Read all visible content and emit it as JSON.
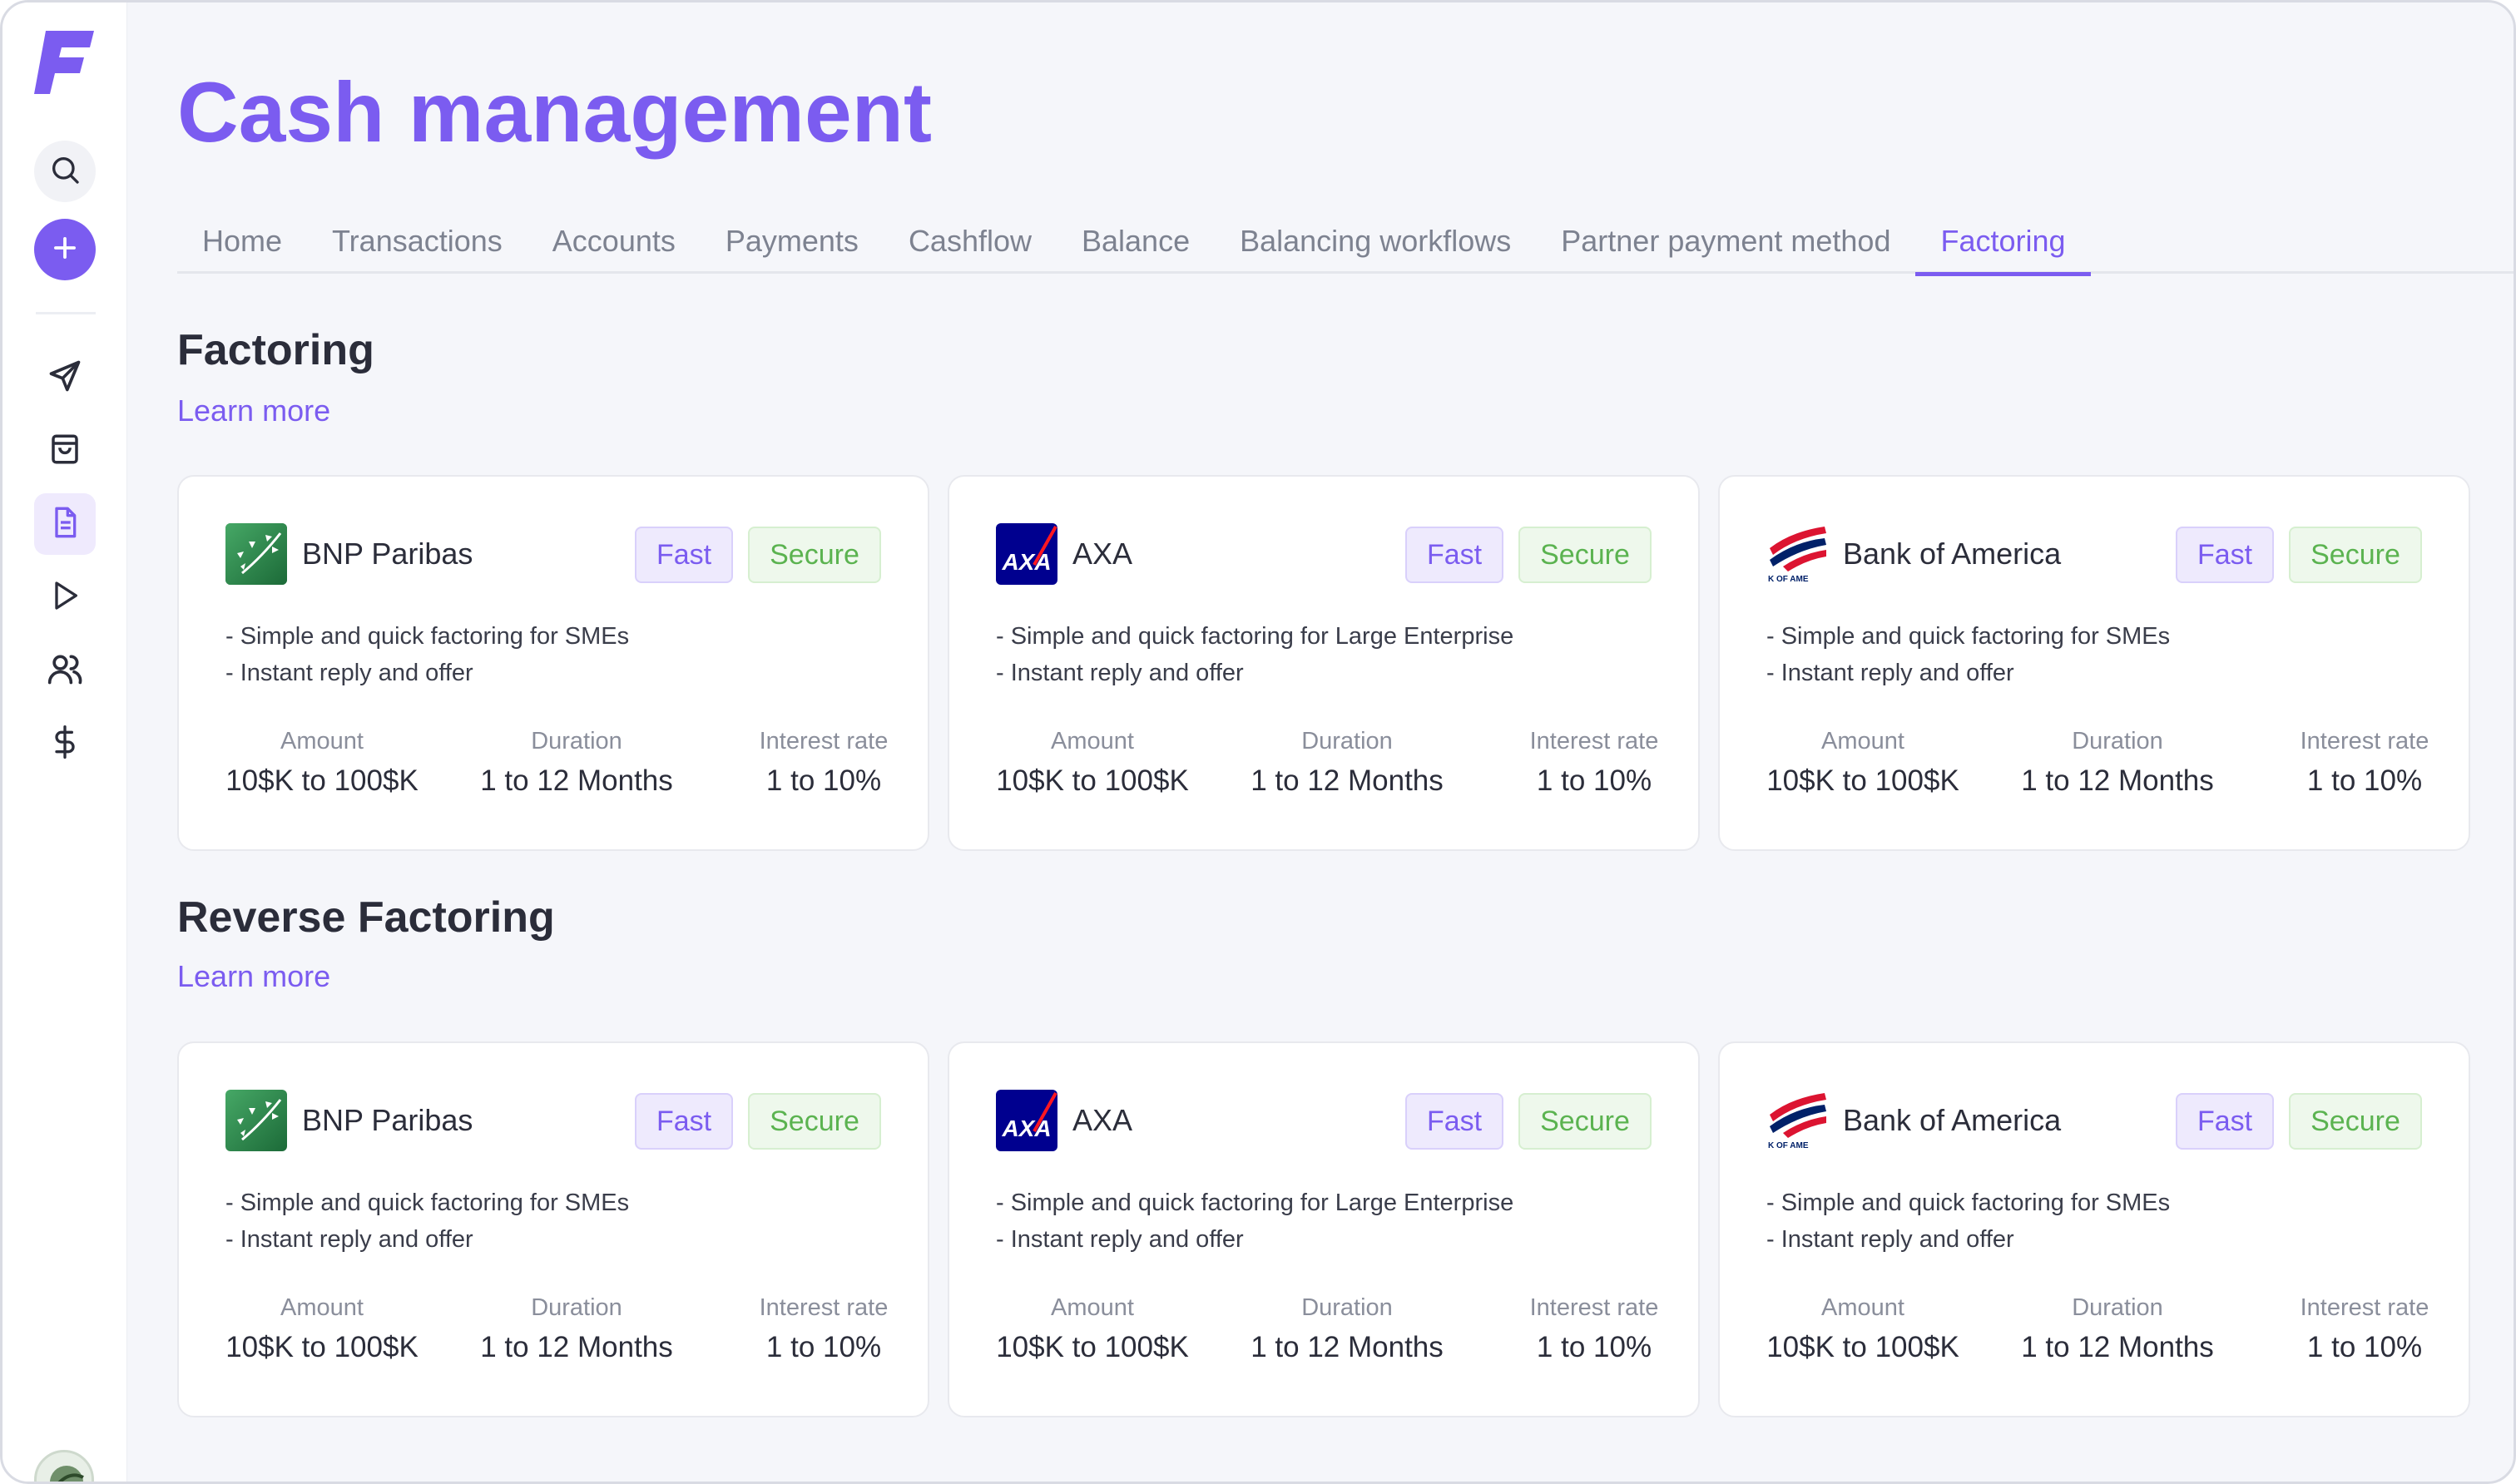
{
  "app": {
    "logo_letter": "F",
    "title": "Cash management"
  },
  "sidebar": {
    "icons": [
      "search-icon",
      "plus-icon",
      "send-icon",
      "bag-icon",
      "document-icon",
      "play-icon",
      "users-icon",
      "dollar-icon"
    ],
    "active": "document-icon"
  },
  "tabs": [
    {
      "label": "Home",
      "active": false
    },
    {
      "label": "Transactions",
      "active": false
    },
    {
      "label": "Accounts",
      "active": false
    },
    {
      "label": "Payments",
      "active": false
    },
    {
      "label": "Cashflow",
      "active": false
    },
    {
      "label": "Balance",
      "active": false
    },
    {
      "label": "Balancing workflows",
      "active": false
    },
    {
      "label": "Partner payment method",
      "active": false
    },
    {
      "label": "Factoring",
      "active": true
    }
  ],
  "sections": [
    {
      "title": "Factoring",
      "learn_more": "Learn more",
      "cards": [
        {
          "bank": "BNP Paribas",
          "logo": "bnp-logo",
          "badges": {
            "fast": "Fast",
            "secure": "Secure"
          },
          "lines": [
            "- Simple and quick factoring for SMEs",
            "- Instant reply and offer"
          ],
          "stats": [
            {
              "label": "Amount",
              "value": "10$K to 100$K"
            },
            {
              "label": "Duration",
              "value": "1 to 12 Months"
            },
            {
              "label": "Interest rate",
              "value": "1 to 10%"
            }
          ]
        },
        {
          "bank": "AXA",
          "logo": "axa-logo",
          "badges": {
            "fast": "Fast",
            "secure": "Secure"
          },
          "lines": [
            "- Simple and quick factoring for Large Enterprise",
            "- Instant reply and offer"
          ],
          "stats": [
            {
              "label": "Amount",
              "value": "10$K to 100$K"
            },
            {
              "label": "Duration",
              "value": "1 to 12 Months"
            },
            {
              "label": "Interest rate",
              "value": "1 to 10%"
            }
          ]
        },
        {
          "bank": "Bank of America",
          "logo": "bofa-logo",
          "badges": {
            "fast": "Fast",
            "secure": "Secure"
          },
          "lines": [
            "- Simple and quick factoring for SMEs",
            "- Instant reply and offer"
          ],
          "stats": [
            {
              "label": "Amount",
              "value": "10$K to 100$K"
            },
            {
              "label": "Duration",
              "value": "1 to 12 Months"
            },
            {
              "label": "Interest rate",
              "value": "1 to 10%"
            }
          ]
        }
      ]
    },
    {
      "title": "Reverse Factoring",
      "learn_more": "Learn more",
      "cards": [
        {
          "bank": "BNP Paribas",
          "logo": "bnp-logo",
          "badges": {
            "fast": "Fast",
            "secure": "Secure"
          },
          "lines": [
            "- Simple and quick factoring for SMEs",
            "- Instant reply and offer"
          ],
          "stats": [
            {
              "label": "Amount",
              "value": "10$K to 100$K"
            },
            {
              "label": "Duration",
              "value": "1 to 12 Months"
            },
            {
              "label": "Interest rate",
              "value": "1 to 10%"
            }
          ]
        },
        {
          "bank": "AXA",
          "logo": "axa-logo",
          "badges": {
            "fast": "Fast",
            "secure": "Secure"
          },
          "lines": [
            "- Simple and quick factoring for Large Enterprise",
            "- Instant reply and offer"
          ],
          "stats": [
            {
              "label": "Amount",
              "value": "10$K to 100$K"
            },
            {
              "label": "Duration",
              "value": "1 to 12 Months"
            },
            {
              "label": "Interest rate",
              "value": "1 to 10%"
            }
          ]
        },
        {
          "bank": "Bank of America",
          "logo": "bofa-logo",
          "badges": {
            "fast": "Fast",
            "secure": "Secure"
          },
          "lines": [
            "- Simple and quick factoring for SMEs",
            "- Instant reply and offer"
          ],
          "stats": [
            {
              "label": "Amount",
              "value": "10$K to 100$K"
            },
            {
              "label": "Duration",
              "value": "1 to 12 Months"
            },
            {
              "label": "Interest rate",
              "value": "1 to 10%"
            }
          ]
        }
      ]
    }
  ],
  "colors": {
    "accent": "#7b5cf0",
    "secure_green": "#5bb350",
    "background": "#f5f6fa"
  }
}
